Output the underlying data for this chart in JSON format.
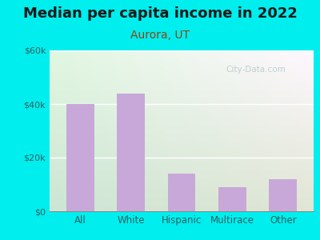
{
  "title": "Median per capita income in 2022",
  "subtitle": "Aurora, UT",
  "categories": [
    "All",
    "White",
    "Hispanic",
    "Multirace",
    "Other"
  ],
  "values": [
    40000,
    44000,
    14000,
    9000,
    12000
  ],
  "bar_color": "#c8a8d8",
  "background_outer": "#00EEEE",
  "background_inner_topleft": "#d8eed8",
  "background_inner_topright": "#f0f8ff",
  "background_inner_bottom": "#c8e8c8",
  "title_fontsize": 13,
  "subtitle_fontsize": 10,
  "title_color": "#1a1a1a",
  "subtitle_color": "#8B4513",
  "tick_label_color": "#2F6060",
  "ylim": [
    0,
    60000
  ],
  "yticks": [
    0,
    20000,
    40000,
    60000
  ],
  "ytick_labels": [
    "$0",
    "$20k",
    "$40k",
    "$60k"
  ],
  "watermark": "City-Data.com"
}
